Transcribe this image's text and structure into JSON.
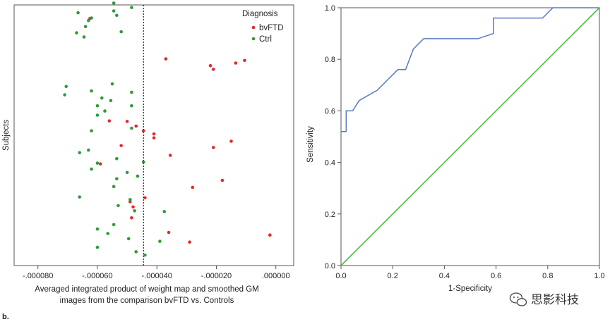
{
  "figure_label": "b.",
  "watermark": "思影科技",
  "chart_data": [
    {
      "type": "scatter",
      "title": "",
      "xlabel_lines": [
        "Averaged integrated product of weight map and smoothed GM",
        "images from the comparison bvFTD vs. Controls"
      ],
      "ylabel": "Subjects",
      "xlim": [
        -8.8e-05,
        6e-06
      ],
      "x_ticks": [
        -8e-05,
        -6e-05,
        -4e-05,
        -2e-05,
        0.0
      ],
      "x_tick_labels": [
        "-.000080",
        "-.000060",
        "-.000040",
        "-.000020",
        ".000000"
      ],
      "grid": false,
      "threshold_x": -4.45e-05,
      "legend": {
        "title": "Diagnosis",
        "position": "top-right"
      },
      "series": [
        {
          "name": "bvFTD",
          "color": "#e02b2b",
          "points": [
            [
              -6.25e-05,
              0.948
            ],
            [
              -3.7e-05,
              0.793
            ],
            [
              -2.2e-05,
              0.767
            ],
            [
              -2.1e-05,
              0.753
            ],
            [
              -1.35e-05,
              0.777
            ],
            [
              -1.05e-05,
              0.787
            ],
            [
              -5.6e-05,
              0.555
            ],
            [
              -5e-05,
              0.553
            ],
            [
              -4.7e-05,
              0.535
            ],
            [
              -4.45e-05,
              0.517
            ],
            [
              -4.1e-05,
              0.505
            ],
            [
              -4.1e-05,
              0.49
            ],
            [
              -5.2e-05,
              0.46
            ],
            [
              -1.5e-05,
              0.477
            ],
            [
              -2.1e-05,
              0.453
            ],
            [
              -3.55e-05,
              0.423
            ],
            [
              -5.9e-05,
              0.39
            ],
            [
              -1.8e-05,
              0.327
            ],
            [
              -2.8e-05,
              0.3
            ],
            [
              -4.4e-05,
              0.26
            ],
            [
              -4.9e-05,
              0.245
            ],
            [
              -4.8e-05,
              0.225
            ],
            [
              -4.85e-05,
              0.183
            ],
            [
              -3.6e-05,
              0.127
            ],
            [
              -2.9e-05,
              0.09
            ],
            [
              -2e-06,
              0.117
            ]
          ]
        },
        {
          "name": "Ctrl",
          "color": "#2e9b3a",
          "points": [
            [
              -5.45e-05,
              1.007
            ],
            [
              -4.85e-05,
              0.99
            ],
            [
              -5.45e-05,
              0.977
            ],
            [
              -6.65e-05,
              0.97
            ],
            [
              -5.35e-05,
              0.96
            ],
            [
              -6.2e-05,
              0.95
            ],
            [
              -6.3e-05,
              0.94
            ],
            [
              -6.4e-05,
              0.917
            ],
            [
              -5.2e-05,
              0.897
            ],
            [
              -6.7e-05,
              0.893
            ],
            [
              -6.45e-05,
              0.877
            ],
            [
              -5.5e-05,
              0.697
            ],
            [
              -7.05e-05,
              0.687
            ],
            [
              -6.2e-05,
              0.67
            ],
            [
              -4.85e-05,
              0.665
            ],
            [
              -7.1e-05,
              0.655
            ],
            [
              -5.85e-05,
              0.643
            ],
            [
              -5.55e-05,
              0.633
            ],
            [
              -6e-05,
              0.613
            ],
            [
              -4.85e-05,
              0.613
            ],
            [
              -5.75e-05,
              0.593
            ],
            [
              -6e-05,
              0.577
            ],
            [
              -4.85e-05,
              0.527
            ],
            [
              -6.2e-05,
              0.517
            ],
            [
              -6.3e-05,
              0.443
            ],
            [
              -6.6e-05,
              0.433
            ],
            [
              -5.35e-05,
              0.41
            ],
            [
              -4.45e-05,
              0.397
            ],
            [
              -6e-05,
              0.393
            ],
            [
              -6.2e-05,
              0.37
            ],
            [
              -5e-05,
              0.357
            ],
            [
              -4.65e-05,
              0.343
            ],
            [
              -5.35e-05,
              0.333
            ],
            [
              -5.45e-05,
              0.303
            ],
            [
              -6.6e-05,
              0.263
            ],
            [
              -4.9e-05,
              0.253
            ],
            [
              -5.3e-05,
              0.23
            ],
            [
              -3.75e-05,
              0.207
            ],
            [
              -4.75e-05,
              0.21
            ],
            [
              -5.45e-05,
              0.157
            ],
            [
              -6e-05,
              0.14
            ],
            [
              -5.65e-05,
              0.123
            ],
            [
              -4.95e-05,
              0.103
            ],
            [
              -3.9e-05,
              0.093
            ],
            [
              -6e-05,
              0.07
            ],
            [
              -4.7e-05,
              0.053
            ],
            [
              -4.4e-05,
              0.04
            ]
          ]
        }
      ]
    },
    {
      "type": "line",
      "title": "",
      "xlabel": "1-Specificity",
      "ylabel": "Sensitivity",
      "xlim": [
        0,
        1
      ],
      "ylim": [
        0,
        1
      ],
      "x_ticks": [
        0.0,
        0.2,
        0.4,
        0.6,
        0.8,
        1.0
      ],
      "x_tick_labels": [
        "0.0",
        "0.2",
        "0.4",
        "0.6",
        "0.8",
        "1.0"
      ],
      "y_ticks": [
        0.0,
        0.2,
        0.4,
        0.6,
        0.8,
        1.0
      ],
      "y_tick_labels": [
        "0.0",
        "0.2",
        "0.4",
        "0.6",
        "0.8",
        "1.0"
      ],
      "grid": false,
      "series": [
        {
          "color": "#5a79c2",
          "points": [
            [
              0.0,
              0.52
            ],
            [
              0.02,
              0.52
            ],
            [
              0.02,
              0.6
            ],
            [
              0.045,
              0.6
            ],
            [
              0.07,
              0.64
            ],
            [
              0.14,
              0.68
            ],
            [
              0.22,
              0.76
            ],
            [
              0.25,
              0.76
            ],
            [
              0.28,
              0.84
            ],
            [
              0.32,
              0.88
            ],
            [
              0.53,
              0.88
            ],
            [
              0.59,
              0.9
            ],
            [
              0.59,
              0.96
            ],
            [
              0.78,
              0.96
            ],
            [
              0.82,
              1.0
            ],
            [
              1.0,
              1.0
            ]
          ]
        },
        {
          "color": "#4cbf3e",
          "points": [
            [
              0.0,
              0.0
            ],
            [
              1.0,
              1.0
            ]
          ]
        }
      ]
    }
  ]
}
